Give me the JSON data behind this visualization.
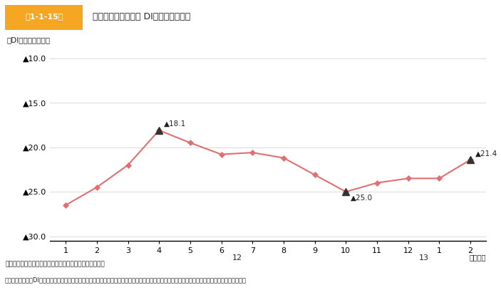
{
  "title": "第1-1-15図　中小企業の資金繰り DIの推移（月次）",
  "title_box_text": "第1-1-15図",
  "title_main_text": "中小企業の資金繰り DIの推移（月次）",
  "ylabel": "（DI、前年同月比）",
  "xlabel_note": "（年月）",
  "x_labels": [
    "1",
    "2",
    "3",
    "4",
    "5",
    "6",
    "7",
    "8",
    "9",
    "10",
    "11",
    "12",
    "1",
    "2"
  ],
  "x_year_labels": [
    {
      "index": 6,
      "text": "12"
    },
    {
      "index": 12,
      "text": "13"
    }
  ],
  "values": [
    -26.5,
    -24.5,
    -22.0,
    -18.1,
    -19.5,
    -20.8,
    -20.6,
    -21.2,
    -23.1,
    -25.0,
    -24.0,
    -23.5,
    -23.5,
    -21.4
  ],
  "ylim": [
    -30.5,
    -9.0
  ],
  "yticks": [
    -10.0,
    -15.0,
    -20.0,
    -25.0,
    -30.0
  ],
  "ytick_labels": [
    "▲10.0",
    "▲15.0",
    "▲20.0",
    "▲25.0",
    "▲30.0"
  ],
  "annotated_points": [
    {
      "index": 3,
      "label": "▲18.1"
    },
    {
      "index": 9,
      "label": "▲25.0"
    },
    {
      "index": 13,
      "label": "▲21.4"
    }
  ],
  "line_color": "#E07070",
  "marker_color": "#E07070",
  "annotation_marker_color": "#333333",
  "source_text": "資料：全国中小企業団体中央会「中小企業月次景況調査」",
  "note_text": "（注）　資金繰りDIは、前年同月に比べて、資金繰りが「好転」と答えた企業の割合（％）から、「悪化」と答えた企業の割合（％）を引いたもの。",
  "header_bg_color": "#F5A623",
  "header_text_color": "#FFFFFF",
  "background_color": "#FFFFFF"
}
